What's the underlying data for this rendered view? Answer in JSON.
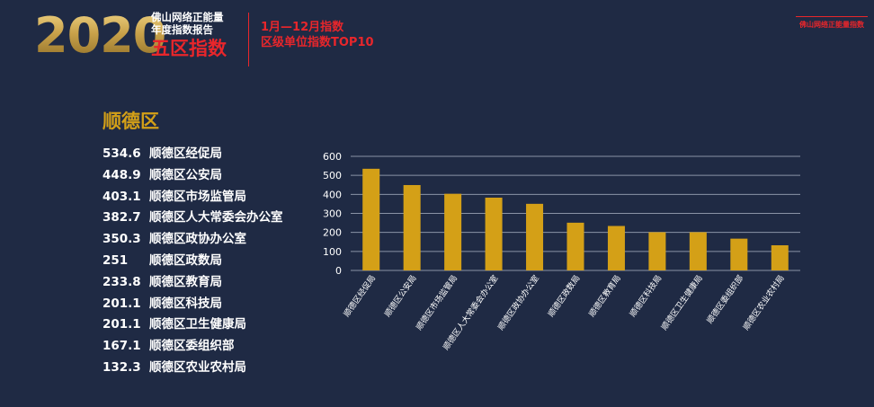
{
  "header": {
    "year": "2020",
    "subtitle_line1": "佛山网络正能量",
    "subtitle_line2": "年度指数报告",
    "subtitle_red": "五区指数",
    "period": "1月—12月指数",
    "ranking_title": "区级单位指数TOP10",
    "brand": "佛山网络正能量指数"
  },
  "district": "顺德区",
  "ranking": [
    {
      "value": "534.6",
      "name": "顺德区经促局"
    },
    {
      "value": "448.9",
      "name": "顺德区公安局"
    },
    {
      "value": "403.1",
      "name": "顺德区市场监管局"
    },
    {
      "value": "382.7",
      "name": "顺德区人大常委会办公室"
    },
    {
      "value": "350.3",
      "name": "顺德区政协办公室"
    },
    {
      "value": "251",
      "name": "顺德区政数局"
    },
    {
      "value": "233.8",
      "name": "顺德区教育局"
    },
    {
      "value": "201.1",
      "name": "顺德区科技局"
    },
    {
      "value": "201.1",
      "name": "顺德区卫生健康局"
    },
    {
      "value": "167.1",
      "name": "顺德区委组织部"
    },
    {
      "value": "132.3",
      "name": "顺德区农业农村局"
    }
  ],
  "colors": {
    "background": "#1f2a44",
    "bar": "#d4a017",
    "accent_red": "#e8262b",
    "grid": "#8a93a6"
  },
  "chart_data": {
    "type": "bar",
    "categories": [
      "顺德区经促局",
      "顺德区公安局",
      "顺德区市场监管局",
      "顺德区人大常委会办公室",
      "顺德区政协办公室",
      "顺德区政数局",
      "顺德区教育局",
      "顺德区科技局",
      "顺德区卫生健康局",
      "顺德区委组织部",
      "顺德区农业农村局"
    ],
    "values": [
      534.6,
      448.9,
      403.1,
      382.7,
      350.3,
      251,
      233.8,
      201.1,
      201.1,
      167.1,
      132.3
    ],
    "yticks": [
      0,
      100,
      200,
      300,
      400,
      500,
      600
    ],
    "ylim": [
      0,
      600
    ],
    "title": "",
    "xlabel": "",
    "ylabel": "",
    "grid": true,
    "legend": "none"
  }
}
